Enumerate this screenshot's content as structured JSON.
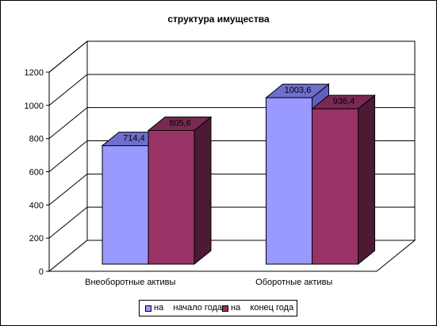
{
  "chart_data": {
    "type": "bar",
    "title": "структура имущества",
    "categories": [
      "Внеоборотные активы",
      "Оборотные активы"
    ],
    "series": [
      {
        "name": "на    начало года",
        "values": [
          714.4,
          1003.6
        ],
        "labels": [
          "714,4",
          "1003,6"
        ],
        "color": "#9999ff",
        "top_color": "#6f6fcf",
        "side_color": "#5f5fbf"
      },
      {
        "name": "на    конец года",
        "values": [
          805.6,
          936.4
        ],
        "labels": [
          "805,6",
          "936,4"
        ],
        "color": "#993366",
        "top_color": "#7a2a52",
        "side_color": "#4c1a33"
      }
    ],
    "y_ticks": [
      "0",
      "200",
      "400",
      "600",
      "800",
      "1000",
      "1200"
    ],
    "ylim": [
      0,
      1200
    ],
    "grid": true,
    "legend_position": "bottom"
  }
}
